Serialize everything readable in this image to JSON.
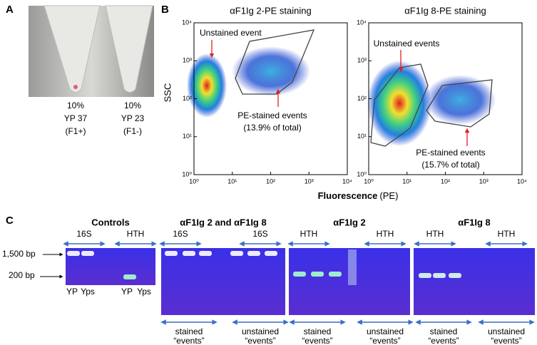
{
  "panel_a": {
    "label": "A",
    "tubes": [
      [
        "10%",
        "YP 37",
        "(F1+)"
      ],
      [
        "10%",
        "YP 23",
        "(F1-)"
      ]
    ]
  },
  "panel_b": {
    "label": "B",
    "y_label": "SSC",
    "x_label": "Fluorescence",
    "x_label_unit": "(PE)",
    "ticks": [
      "10⁰",
      "10¹",
      "10²",
      "10³",
      "10⁴"
    ],
    "plots": [
      {
        "title": "αF1Ig 2-PE staining",
        "unstained": "Unstained event",
        "stained": "PE-stained events",
        "percent": "(13.9% of total)"
      },
      {
        "title": "αF1Ig 8-PE staining",
        "unstained": "Unstained events",
        "stained": "PE-stained events",
        "percent": "(15.7% of total)"
      }
    ]
  },
  "panel_c": {
    "label": "C",
    "size_1500": "1,500 bp",
    "size_200": "200 bp",
    "gels": [
      {
        "title": "Controls",
        "lanes": [
          "16S",
          "HTH"
        ],
        "bottom": [
          "YP",
          "Yps",
          "YP",
          "Yps"
        ]
      },
      {
        "title": "αF1Ig 2 and αF1Ig 8",
        "lanes": [
          "16S",
          "16S"
        ],
        "groups": [
          [
            "stained",
            "“events”"
          ],
          [
            "unstained",
            "“events”"
          ]
        ]
      },
      {
        "title": "αF1Ig 2",
        "lanes": [
          "HTH",
          "HTH"
        ],
        "groups": [
          [
            "stained",
            "“events”"
          ],
          [
            "unstained",
            "“events”"
          ]
        ]
      },
      {
        "title": "αF1Ig 8",
        "lanes": [
          "HTH",
          "HTH"
        ],
        "groups": [
          [
            "stained",
            "“events”"
          ],
          [
            "unstained",
            "“events”"
          ]
        ]
      }
    ]
  }
}
